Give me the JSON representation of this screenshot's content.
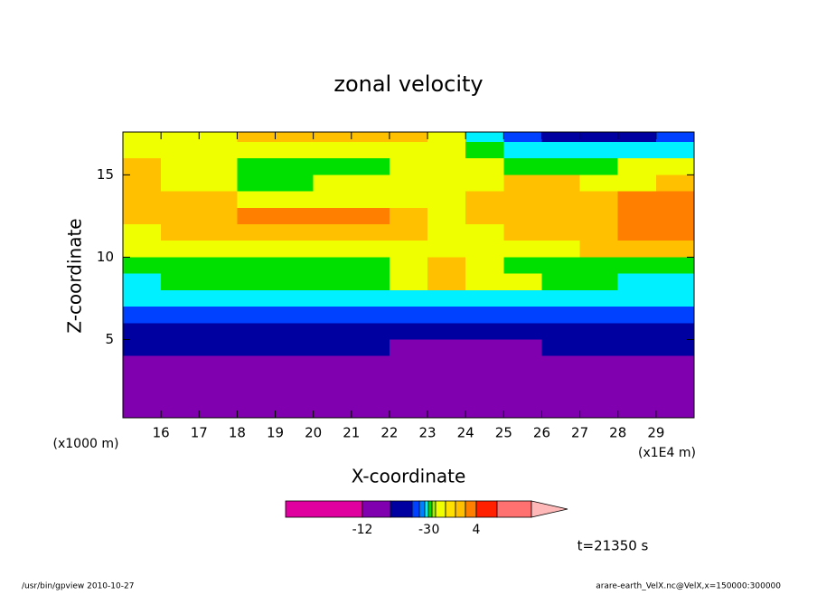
{
  "chart_data": {
    "type": "contour",
    "title": "zonal velocity",
    "x_label": "X-coordinate",
    "y_label": "Z-coordinate",
    "x_unit": "(x1E4 m)",
    "y_unit": "(x1000 m)",
    "time_label": "t=21350 s",
    "footer_left": "/usr/bin/gpview  2010-10-27",
    "footer_right": "arare-earth_VelX.nc@VelX,x=150000:300000",
    "xlim": [
      15,
      30
    ],
    "ylim": [
      0.25,
      17.6
    ],
    "xticks": [
      16,
      17,
      18,
      19,
      20,
      21,
      22,
      23,
      24,
      25,
      26,
      27,
      28,
      29
    ],
    "yticks": [
      5,
      10,
      15
    ],
    "x": [
      15.5,
      16.5,
      17.5,
      18.5,
      19.5,
      20.5,
      21.5,
      22.5,
      23.5,
      24.5,
      25.5,
      26.5,
      27.5,
      28.5,
      29.5
    ],
    "y": [
      17.5,
      16.5,
      15.5,
      14.5,
      13.5,
      12.5,
      11.5,
      10.5,
      9.5,
      8.5,
      7.5,
      6.5,
      5.5,
      4.5,
      3.5,
      2.5,
      1.5,
      0.5
    ],
    "z": [
      [
        0.5,
        0.5,
        0.5,
        2.5,
        2.5,
        2.5,
        2.5,
        2.5,
        0.5,
        -2.5,
        -5,
        -7,
        -7,
        -7,
        -5
      ],
      [
        0.5,
        0.5,
        0.5,
        0.5,
        0.5,
        0.5,
        0.5,
        0.5,
        0.5,
        -1.5,
        -2.5,
        -2.5,
        -2.5,
        -2.5,
        -2.5
      ],
      [
        2.5,
        0.5,
        0.5,
        -1.5,
        -1.5,
        -1.5,
        -1.5,
        0.5,
        0.5,
        0.5,
        -1.5,
        -1.5,
        -1.5,
        0.5,
        0.5
      ],
      [
        2.5,
        0.5,
        0.5,
        -1.5,
        -1.5,
        0.5,
        0.5,
        0.5,
        0.5,
        0.5,
        2.5,
        2.5,
        0.5,
        0.5,
        2.5
      ],
      [
        2.5,
        2.5,
        2.5,
        0.5,
        0.5,
        0.5,
        0.5,
        0.5,
        0.5,
        2.5,
        2.5,
        2.5,
        2.5,
        3.5,
        3.5
      ],
      [
        2.5,
        2.5,
        2.5,
        3.5,
        3.5,
        3.5,
        3.5,
        2.5,
        0.5,
        2.5,
        2.5,
        2.5,
        2.5,
        3.5,
        3.5
      ],
      [
        0.5,
        2.5,
        2.5,
        2.5,
        2.5,
        2.5,
        2.5,
        2.5,
        0.5,
        0.5,
        2.5,
        2.5,
        2.5,
        3.5,
        3.5
      ],
      [
        0.5,
        0.5,
        0.5,
        0.5,
        0.5,
        0.5,
        0.5,
        0.5,
        0.5,
        0.5,
        0.5,
        0.5,
        2.5,
        2.5,
        2.5
      ],
      [
        -1.5,
        -1.5,
        -1.5,
        -1.5,
        -1.5,
        -1.5,
        -1.5,
        0.5,
        2.5,
        0.5,
        -1.5,
        -1.5,
        -1.5,
        -1.5,
        -1.5
      ],
      [
        -2.5,
        -1.5,
        -1.5,
        -1.5,
        -1.5,
        -1.5,
        -1.5,
        0.5,
        2.5,
        0.5,
        0.5,
        -1.5,
        -1.5,
        -2.5,
        -2.5
      ],
      [
        -2.5,
        -2.5,
        -2.5,
        -2.5,
        -2.5,
        -2.5,
        -2.5,
        -2.5,
        -2.5,
        -2.5,
        -2.5,
        -2.5,
        -2.5,
        -2.5,
        -2.5
      ],
      [
        -5,
        -5,
        -5,
        -5,
        -5,
        -5,
        -5,
        -5,
        -5,
        -5,
        -5,
        -5,
        -5,
        -5,
        -5
      ],
      [
        -7,
        -7,
        -7,
        -7,
        -7,
        -7,
        -7,
        -7,
        -7,
        -7,
        -7,
        -7,
        -7,
        -7,
        -7
      ],
      [
        -7,
        -7,
        -7,
        -7,
        -7,
        -7,
        -7,
        -10,
        -10,
        -10,
        -10,
        -7,
        -7,
        -7,
        -7
      ],
      [
        -10,
        -10,
        -10,
        -10,
        -10,
        -10,
        -10,
        -10,
        -10,
        -10,
        -10,
        -10,
        -10,
        -10,
        -10
      ],
      [
        -10,
        -10,
        -10,
        -10,
        -10,
        -10,
        -10,
        -10,
        -10,
        -10,
        -10,
        -10,
        -10,
        -10,
        -10
      ],
      [
        -10,
        -10,
        -10,
        -10,
        -10,
        -10,
        -10,
        -10,
        -10,
        -10,
        -10,
        -10,
        -10,
        -10,
        -10
      ],
      [
        -10,
        -10,
        -10,
        -10,
        -10,
        -10,
        -10,
        -10,
        -10,
        -10,
        -10,
        -10,
        -10,
        -10,
        -10
      ]
    ],
    "levels": [
      -12,
      -9,
      -6,
      -4,
      -3,
      -2,
      -1,
      0,
      1,
      2,
      3,
      4,
      6
    ],
    "colors": [
      "#e000a0",
      "#8000b0",
      "#0000a0",
      "#0040ff",
      "#0080ff",
      "#00f0ff",
      "#00e000",
      "#a0f000",
      "#f0ff00",
      "#ffe000",
      "#ffc000",
      "#ff8000",
      "#ff2000",
      "#ff7070"
    ],
    "extend_color": "#ffb8b8",
    "colorbar_ticks": [
      -12,
      -3,
      0,
      4
    ]
  }
}
